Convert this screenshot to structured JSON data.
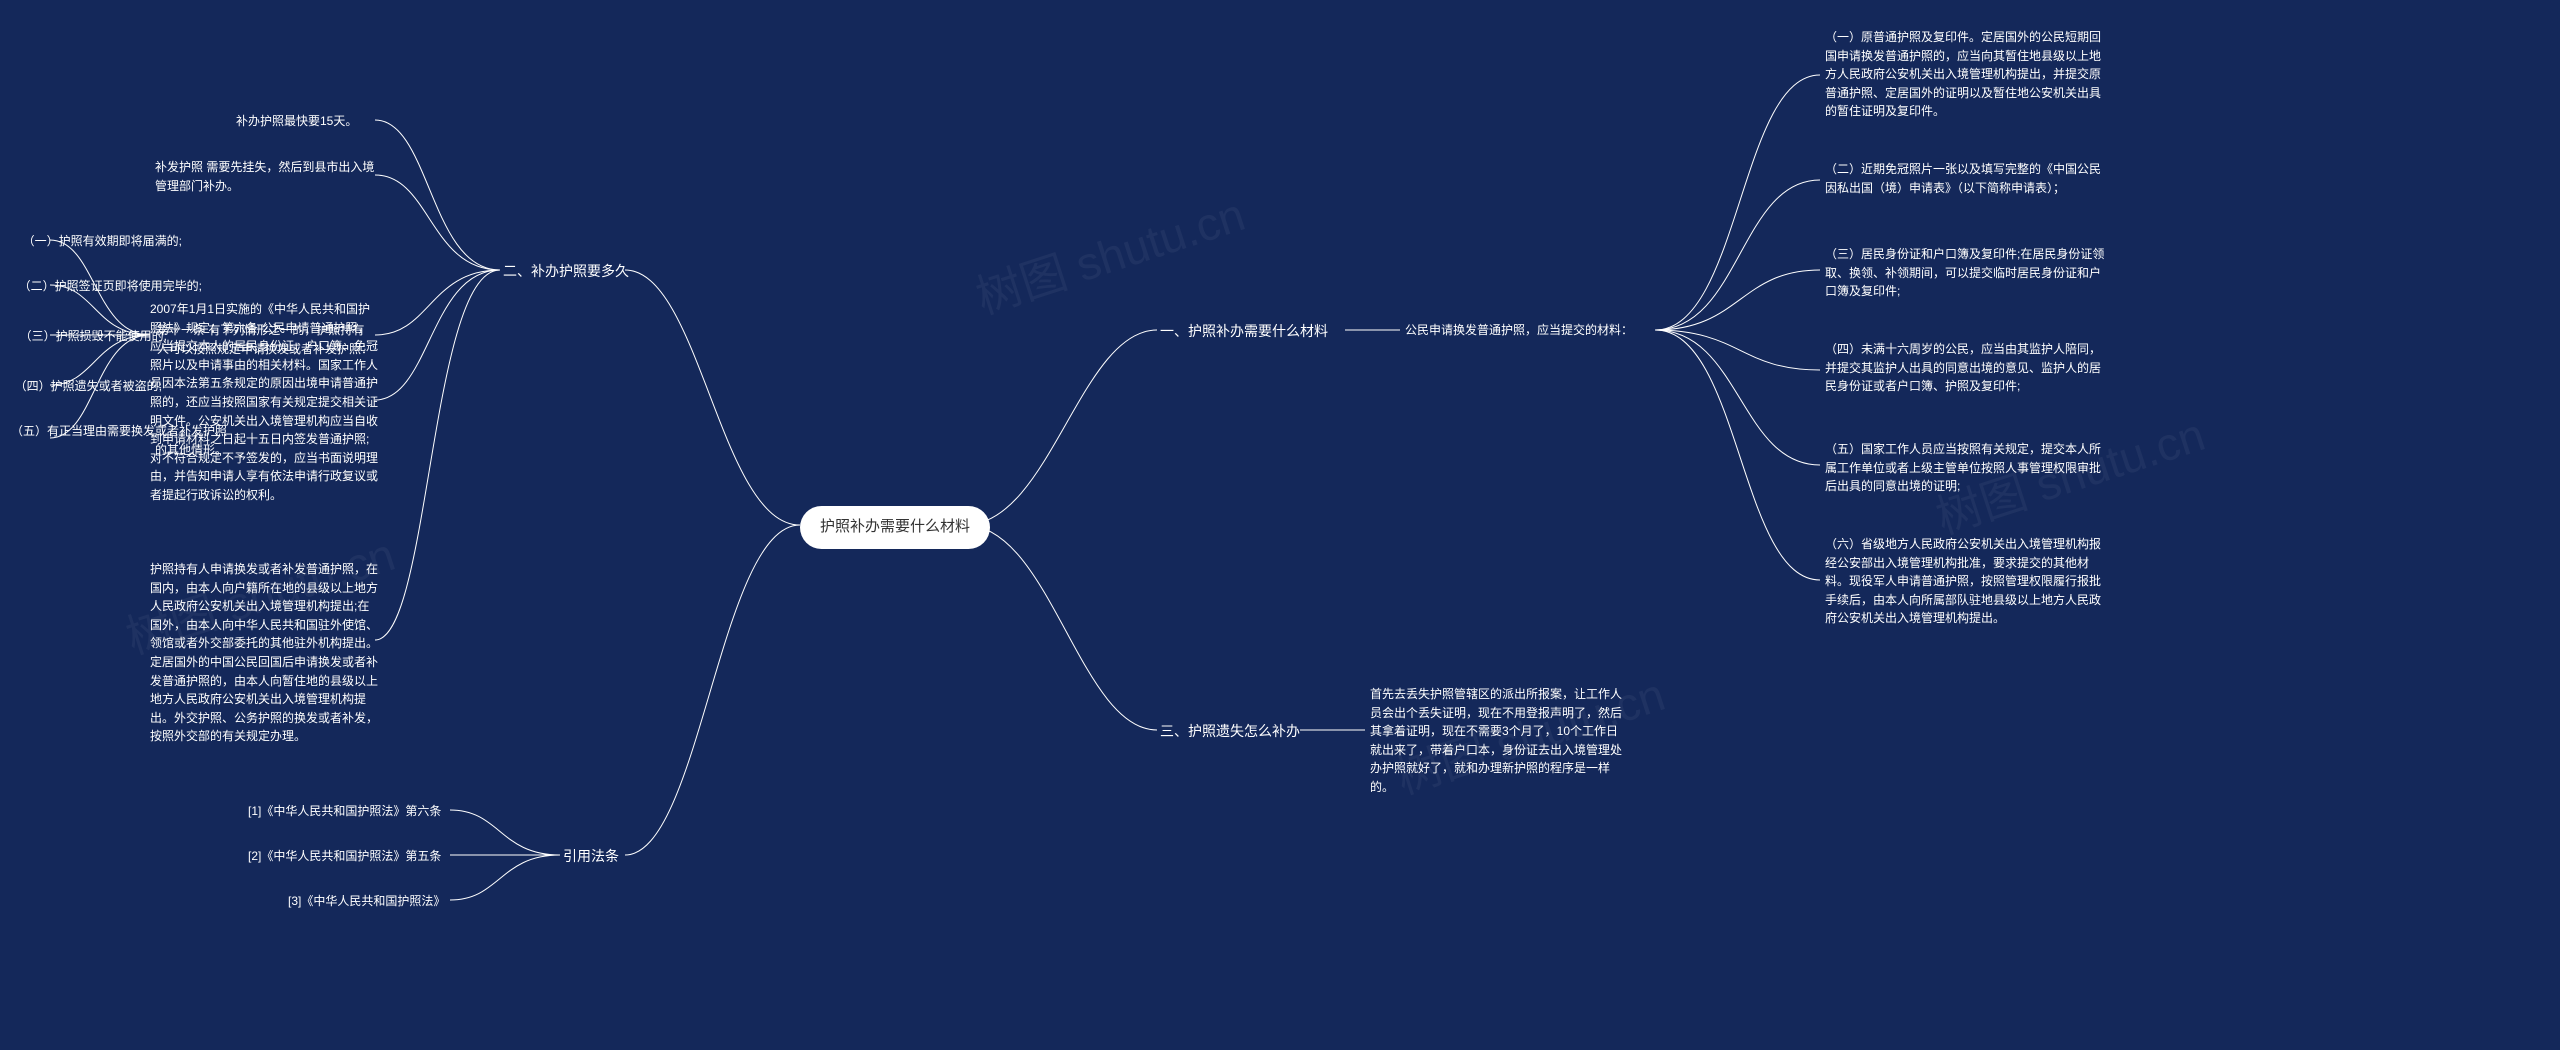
{
  "background_color": "#14285a",
  "text_color": "#ffffff",
  "center_bg": "#ffffff",
  "center_text_color": "#333333",
  "center": {
    "label": "护照补办需要什么材料"
  },
  "b1": {
    "label": "一、护照补办需要什么材料",
    "sub": "公民申请换发普通护照，应当提交的材料：",
    "items": [
      "（一）原普通护照及复印件。定居国外的公民短期回国申请换发普通护照的，应当向其暂住地县级以上地方人民政府公安机关出入境管理机构提出，并提交原普通护照、定居国外的证明以及暂住地公安机关出具的暂住证明及复印件。",
      "（二）近期免冠照片一张以及填写完整的《中国公民因私出国（境）申请表》（以下简称申请表）；",
      "（三）居民身份证和户口簿及复印件;在居民身份证领取、换领、补领期间，可以提交临时居民身份证和户口簿及复印件;",
      "（四）未满十六周岁的公民，应当由其监护人陪同，并提交其监护人出具的同意出境的意见、监护人的居民身份证或者户口簿、护照及复印件;",
      "（五）国家工作人员应当按照有关规定，提交本人所属工作单位或者上级主管单位按照人事管理权限审批后出具的同意出境的证明;",
      "（六）省级地方人民政府公安机关出入境管理机构报经公安部出入境管理机构批准，要求提交的其他材料。现役军人申请普通护照，按照管理权限履行报批手续后，由本人向所属部队驻地县级以上地方人民政府公安机关出入境管理机构提出。"
    ]
  },
  "b2": {
    "label": "二、补办护照要多久",
    "items": [
      "补办护照最快要15天。",
      "补发护照 需要先挂失，然后到县市出入境管理部门补办。",
      "2007年1月1日实施的《中华人民共和国护照法》规定：第六条 公民申请普通护照，应当提交本人的居民身份证、户口簿、免冠照片以及申请事由的相关材料。国家工作人员因本法第五条规定的原因出境申请普通护照的，还应当按照国家有关规定提交相关证明文件。公安机关出入境管理机构应当自收到申请材料之日起十五日内签发普通护照;对不符合规定不予签发的，应当书面说明理由，并告知申请人享有依法申请行政复议或者提起行政诉讼的权利。",
      "第十一条 有下列情形之一的，护照持有人可以按照规定申请换发或者补发护照：",
      "护照持有人申请换发或者补发普通护照，在国内，由本人向户籍所在地的县级以上地方人民政府公安机关出入境管理机构提出;在国外，由本人向中华人民共和国驻外使馆、领馆或者外交部委托的其他驻外机构提出。定居国外的中国公民回国后申请换发或者补发普通护照的，由本人向暂住地的县级以上地方人民政府公安机关出入境管理机构提出。外交护照、公务护照的换发或者补发，按照外交部的有关规定办理。"
    ],
    "sub_items": [
      "（一）护照有效期即将届满的;",
      "（二）护照签证页即将使用完毕的;",
      "（三）护照损毁不能使用的;",
      "（四）护照遗失或者被盗的;",
      "（五）有正当理由需要换发或者补发护照的其他情形。"
    ]
  },
  "b3": {
    "label": "三、护照遗失怎么补办",
    "content": "首先去丢失护照管辖区的派出所报案，让工作人员会出个丢失证明，现在不用登报声明了，然后其拿着证明，现在不需要3个月了，10个工作日就出来了，带着户口本，身份证去出入境管理处办护照就好了，就和办理新护照的程序是一样的。"
  },
  "b4": {
    "label": "引用法条",
    "items": [
      "[1]《中华人民共和国护照法》第六条",
      "[2]《中华人民共和国护照法》第五条",
      "[3]《中华人民共和国护照法》"
    ]
  },
  "watermark": "树图 shutu.cn"
}
